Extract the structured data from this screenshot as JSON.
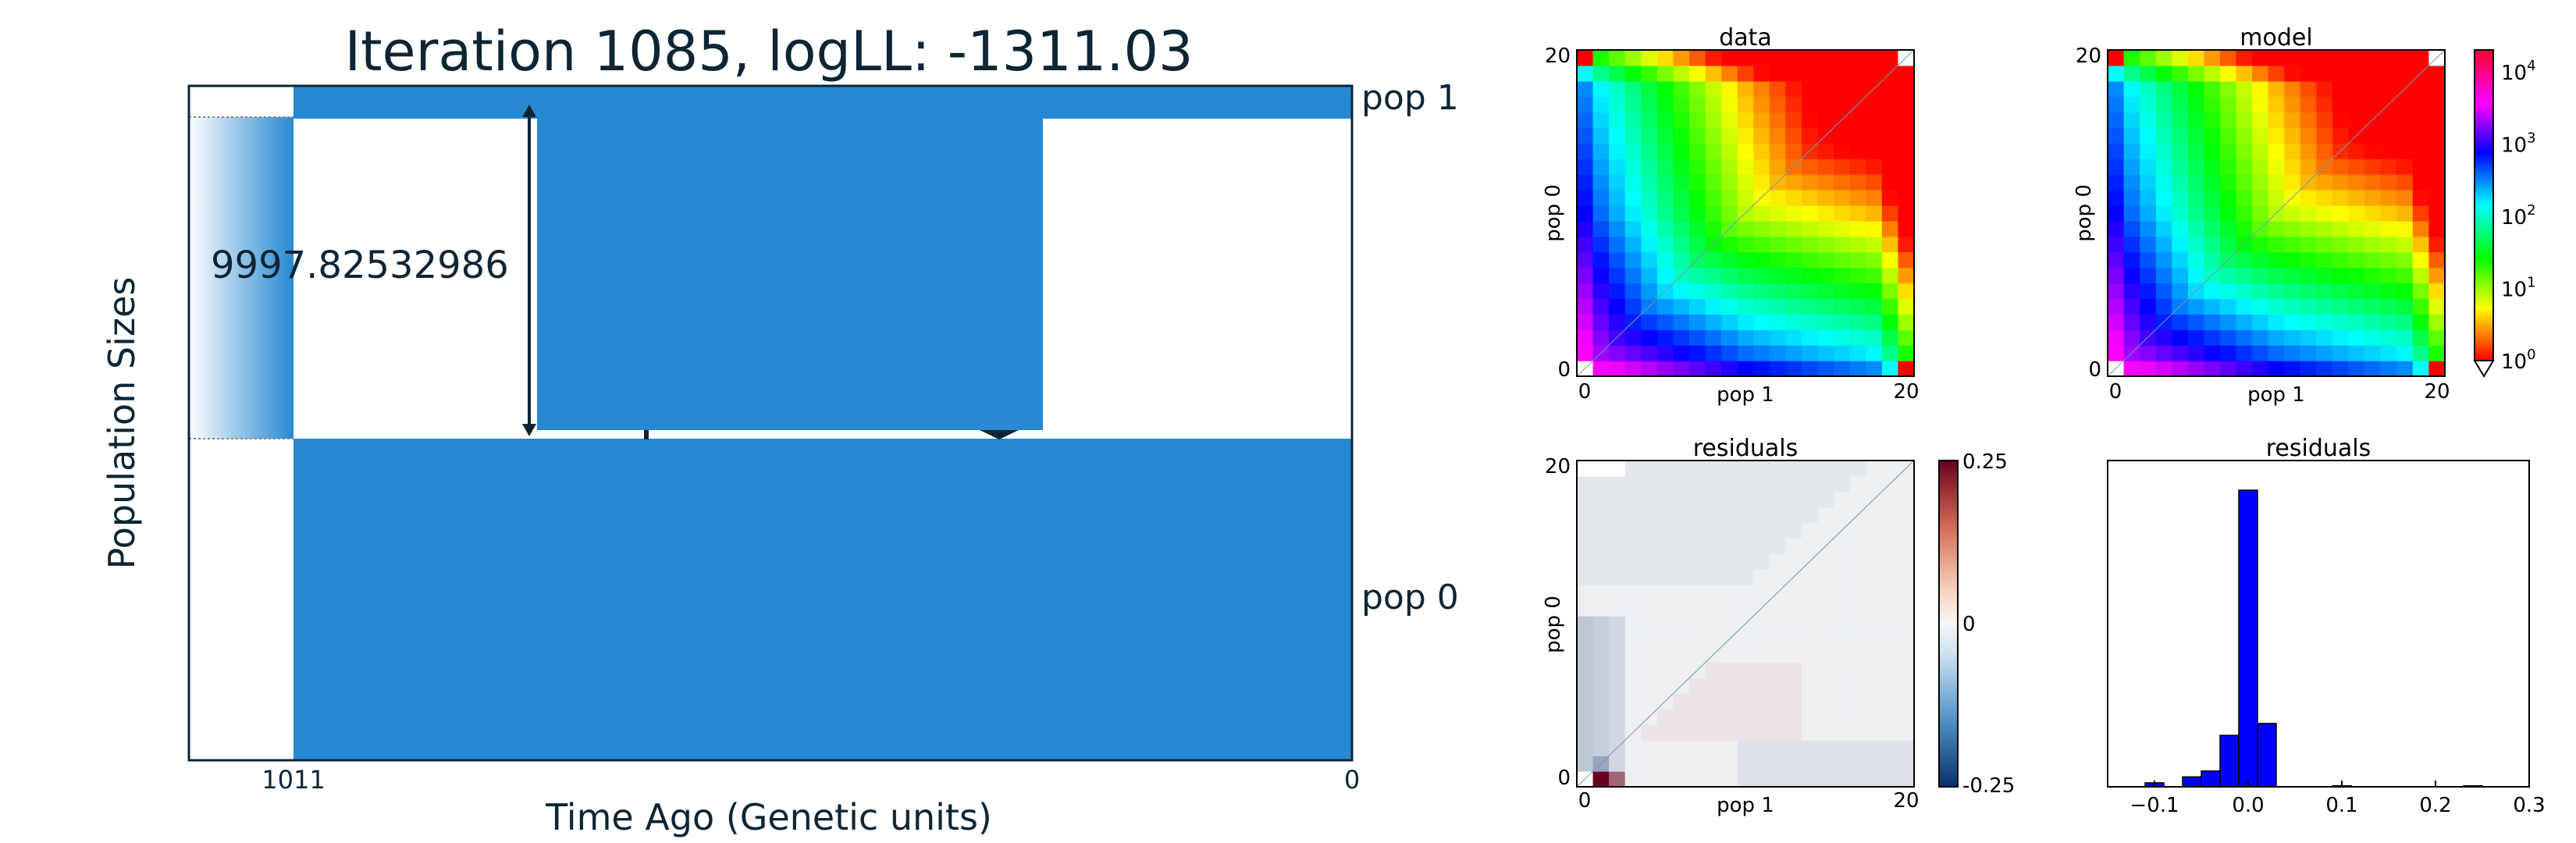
{
  "main": {
    "title": "Iteration 1085, logLL:   -1311.03",
    "xlabel": "Time Ago (Genetic units)",
    "ylabel": "Population Sizes",
    "x_ticks": [
      "1011",
      "0"
    ],
    "pop_labels": [
      "pop 1",
      "pop 0"
    ],
    "annotation": "9997.82532986",
    "colors": {
      "block": "#2789d2",
      "frame": "#0d2535",
      "arrow": "#0d2535"
    }
  },
  "chart_data": [
    {
      "type": "heatmap",
      "title": "data",
      "xlabel": "pop 1",
      "ylabel": "pop 0",
      "x_ticks": [
        "0",
        "20"
      ],
      "y_ticks": [
        "0",
        "20"
      ],
      "grid_size": 21,
      "value_scale": "log10",
      "colorbar": "shared-right",
      "cmap": "hsv (red → yellow → green → cyan → blue → magenta)",
      "masked_cells": [
        "0,0",
        "20,20"
      ]
    },
    {
      "type": "heatmap",
      "title": "model",
      "xlabel": "pop 1",
      "ylabel": "pop 0",
      "x_ticks": [
        "0",
        "20"
      ],
      "y_ticks": [
        "0",
        "20"
      ],
      "grid_size": 21,
      "value_scale": "log10",
      "colorbar": {
        "ticks": [
          {
            "base": "10",
            "exp": "0"
          },
          {
            "base": "10",
            "exp": "1"
          },
          {
            "base": "10",
            "exp": "2"
          },
          {
            "base": "10",
            "exp": "3"
          },
          {
            "base": "10",
            "exp": "4"
          }
        ],
        "range": [
          1,
          20000
        ]
      }
    },
    {
      "type": "heatmap",
      "title": "residuals",
      "xlabel": "pop 1",
      "ylabel": "pop 0",
      "x_ticks": [
        "0",
        "20"
      ],
      "y_ticks": [
        "0",
        "20"
      ],
      "grid_size": 21,
      "cmap": "RdBu_r",
      "colorbar": {
        "ticks": [
          "0.25",
          "0",
          "-0.25"
        ],
        "range": [
          -0.25,
          0.25
        ]
      },
      "notable_cells": [
        {
          "x": 1,
          "y": 0,
          "value": 0.25
        },
        {
          "x": 2,
          "y": 0,
          "value": 0.15
        },
        {
          "x": 1,
          "y": 1,
          "value": -0.1
        }
      ]
    },
    {
      "type": "bar",
      "title": "residuals",
      "x_ticks": [
        "−0.1",
        "0.0",
        "0.1",
        "0.2",
        "0.3"
      ],
      "xlim": [
        -0.15,
        0.3
      ],
      "bin_width": 0.02,
      "bins": [
        {
          "x": -0.1,
          "count": 2
        },
        {
          "x": -0.08,
          "count": 0
        },
        {
          "x": -0.06,
          "count": 5
        },
        {
          "x": -0.04,
          "count": 8
        },
        {
          "x": -0.02,
          "count": 26
        },
        {
          "x": 0.0,
          "count": 150
        },
        {
          "x": 0.02,
          "count": 32
        },
        {
          "x": 0.1,
          "count": 0.5
        },
        {
          "x": 0.24,
          "count": 0.5
        }
      ],
      "ylim": [
        0,
        165
      ],
      "color": "#0000ff"
    }
  ]
}
